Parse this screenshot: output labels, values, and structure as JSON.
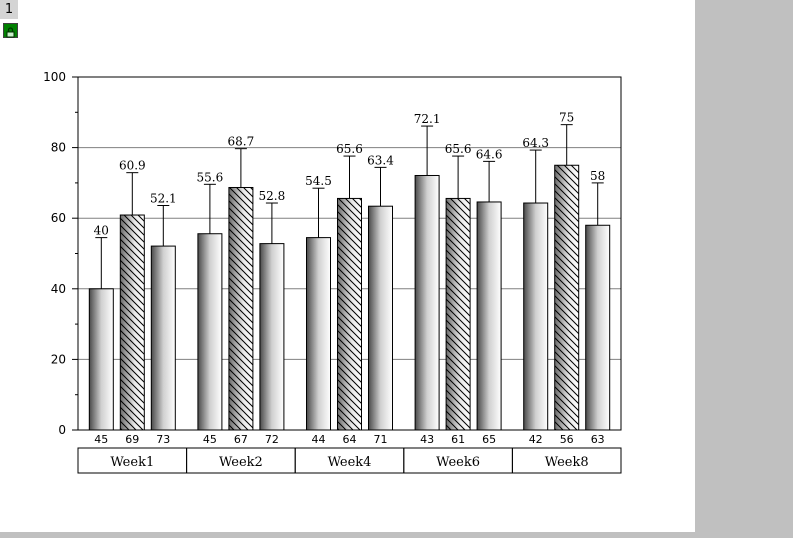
{
  "page_number": "1",
  "chart_data": {
    "type": "bar",
    "categories": [
      "Week1",
      "Week2",
      "Week4",
      "Week6",
      "Week8"
    ],
    "sub_labels": [
      [
        "45",
        "69",
        "73"
      ],
      [
        "45",
        "67",
        "72"
      ],
      [
        "44",
        "64",
        "71"
      ],
      [
        "43",
        "61",
        "65"
      ],
      [
        "42",
        "56",
        "63"
      ]
    ],
    "series": [
      {
        "pattern": "gradient",
        "values": [
          40,
          55.6,
          54.5,
          72.1,
          64.3
        ],
        "errors": [
          14.5,
          14,
          14,
          14,
          15
        ]
      },
      {
        "pattern": "hatch",
        "values": [
          60.9,
          68.7,
          65.6,
          65.6,
          75
        ],
        "errors": [
          12,
          11,
          12,
          12,
          11.5
        ]
      },
      {
        "pattern": "gradient",
        "values": [
          52.1,
          52.8,
          63.4,
          64.6,
          58
        ],
        "errors": [
          11.5,
          11.5,
          11,
          11.5,
          12
        ]
      }
    ],
    "value_labels": [
      [
        "40",
        "60.9",
        "52.1"
      ],
      [
        "55.6",
        "68.7",
        "52.8"
      ],
      [
        "54.5",
        "65.6",
        "63.4"
      ],
      [
        "72.1",
        "65.6",
        "64.6"
      ],
      [
        "64.3",
        "75",
        "58"
      ]
    ],
    "ylim": [
      0,
      100
    ],
    "y_ticks": [
      "0",
      "20",
      "40",
      "60",
      "80",
      "100"
    ],
    "grid": true
  },
  "colors": {
    "bar_dark": "#5a5a5a",
    "bar_light": "#ffffff",
    "grid": "#808080",
    "axis": "#000000"
  }
}
